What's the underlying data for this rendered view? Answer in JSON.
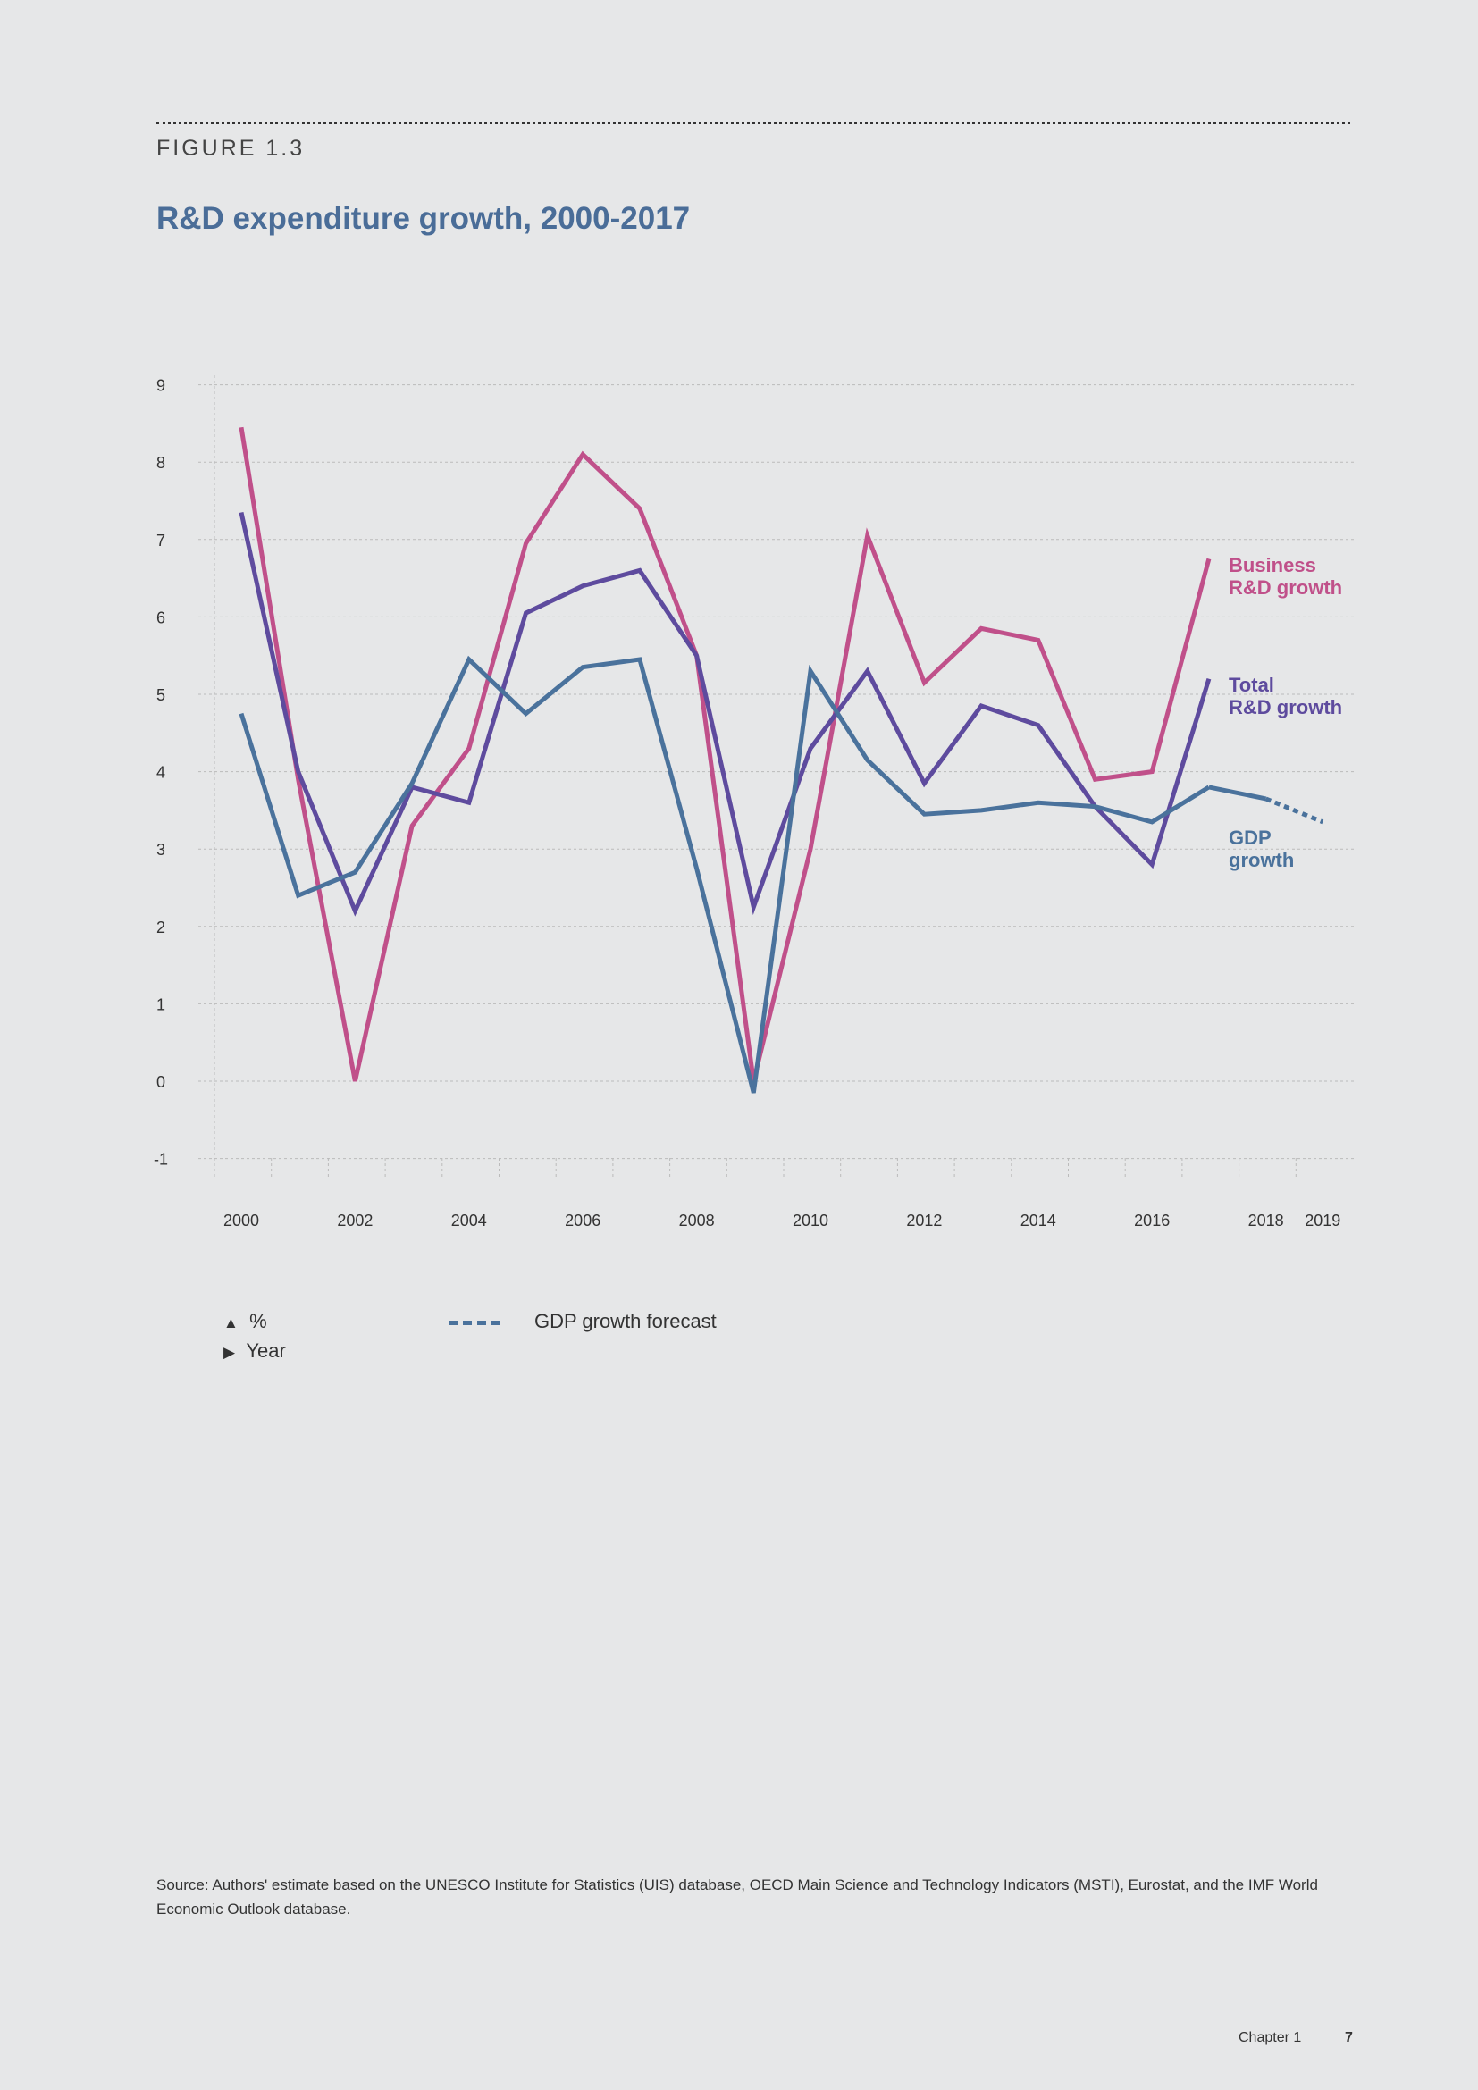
{
  "figure_label": "FIGURE 1.3",
  "title": "R&D expenditure growth, 2000-2017",
  "chart_data": {
    "type": "line",
    "title": "R&D expenditure growth, 2000-2017",
    "ylim": [
      -1,
      9
    ],
    "yticks": [
      "9",
      "8",
      "7",
      "6",
      "5",
      "4",
      "3",
      "2",
      "1",
      "0",
      "-1"
    ],
    "xticks": [
      "2000",
      "2002",
      "2004",
      "2006",
      "2008",
      "2010",
      "2012",
      "2014",
      "2016",
      "2018",
      "2019"
    ],
    "grid": true,
    "x": [
      2000,
      2001,
      2002,
      2003,
      2004,
      2005,
      2006,
      2007,
      2008,
      2009,
      2010,
      2011,
      2012,
      2013,
      2014,
      2015,
      2016,
      2017
    ],
    "series": [
      {
        "name": "Business R&D growth",
        "color": "#c0508a",
        "values": [
          8.45,
          3.9,
          0.0,
          3.3,
          4.3,
          6.95,
          8.1,
          7.4,
          5.5,
          0.0,
          3.0,
          7.05,
          5.15,
          5.85,
          5.7,
          3.9,
          4.0,
          6.75
        ]
      },
      {
        "name": "Total R&D growth",
        "color": "#5e4b9e",
        "values": [
          7.35,
          4.0,
          2.2,
          3.8,
          3.6,
          6.05,
          6.4,
          6.6,
          5.5,
          2.25,
          4.3,
          5.3,
          3.85,
          4.85,
          4.6,
          3.55,
          2.8,
          5.2
        ]
      },
      {
        "name": "GDP growth",
        "color": "#4a729c",
        "values": [
          4.75,
          2.4,
          2.7,
          3.85,
          5.45,
          4.75,
          5.35,
          5.45,
          2.75,
          -0.15,
          5.3,
          4.15,
          3.45,
          3.5,
          3.6,
          3.55,
          3.35,
          3.8
        ]
      }
    ],
    "forecast": {
      "name": "GDP growth forecast",
      "color": "#4a729c",
      "x": [
        2017,
        2018,
        2019
      ],
      "values": [
        3.8,
        3.65,
        3.35
      ]
    },
    "series_labels": [
      [
        "Business",
        "R&D growth"
      ],
      [
        "Total",
        "R&D growth"
      ],
      [
        "GDP",
        "growth"
      ]
    ]
  },
  "legend": {
    "y_axis": "%",
    "x_axis": "Year",
    "forecast": "GDP growth forecast"
  },
  "source": "Source: Authors' estimate based on the UNESCO Institute for Statistics (UIS) database, OECD Main Science and Technology Indicators (MSTI), Eurostat, and the IMF World Economic Outlook database.",
  "footer": {
    "chapter": "Chapter 1",
    "page": "7"
  }
}
